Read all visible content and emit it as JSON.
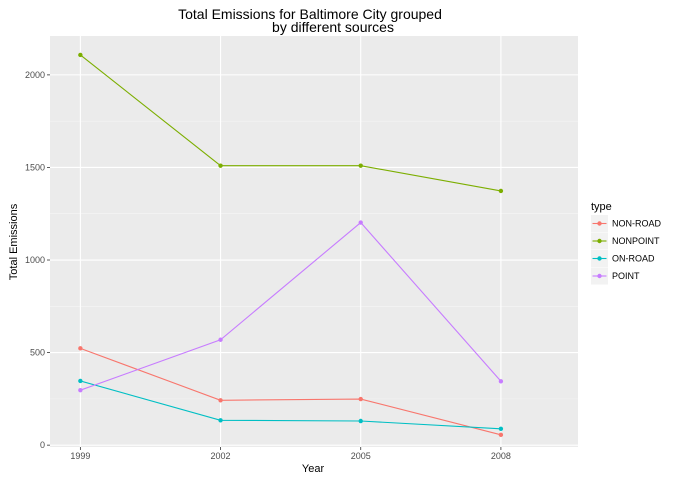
{
  "chart_data": {
    "type": "line",
    "title": [
      "Total Emissions for Baltimore City grouped",
      "by different sources"
    ],
    "xlabel": "Year",
    "ylabel": "Total Emissions",
    "x": [
      1999,
      2002,
      2005,
      2008
    ],
    "xticks": [
      "1999",
      "2002",
      "2005",
      "2008"
    ],
    "yticks": [
      0,
      500,
      1000,
      1500,
      2000
    ],
    "ylim": [
      -10,
      2210
    ],
    "xlim": [
      1998.35,
      2009.65
    ],
    "grid": true,
    "legend": {
      "title": "type",
      "placement": "right"
    },
    "series": [
      {
        "name": "NON-ROAD",
        "color": "#f8766d",
        "values": [
          522.9,
          242.4,
          248.9,
          55.8
        ]
      },
      {
        "name": "NONPOINT",
        "color": "#7cae00",
        "values": [
          2107.6,
          1509.5,
          1509.5,
          1373.2
        ]
      },
      {
        "name": "ON-ROAD",
        "color": "#00bfc4",
        "values": [
          346.8,
          134.3,
          130.4,
          88.3
        ]
      },
      {
        "name": "POINT",
        "color": "#c77cff",
        "values": [
          296.8,
          569.3,
          1202.5,
          344.98
        ]
      }
    ]
  }
}
